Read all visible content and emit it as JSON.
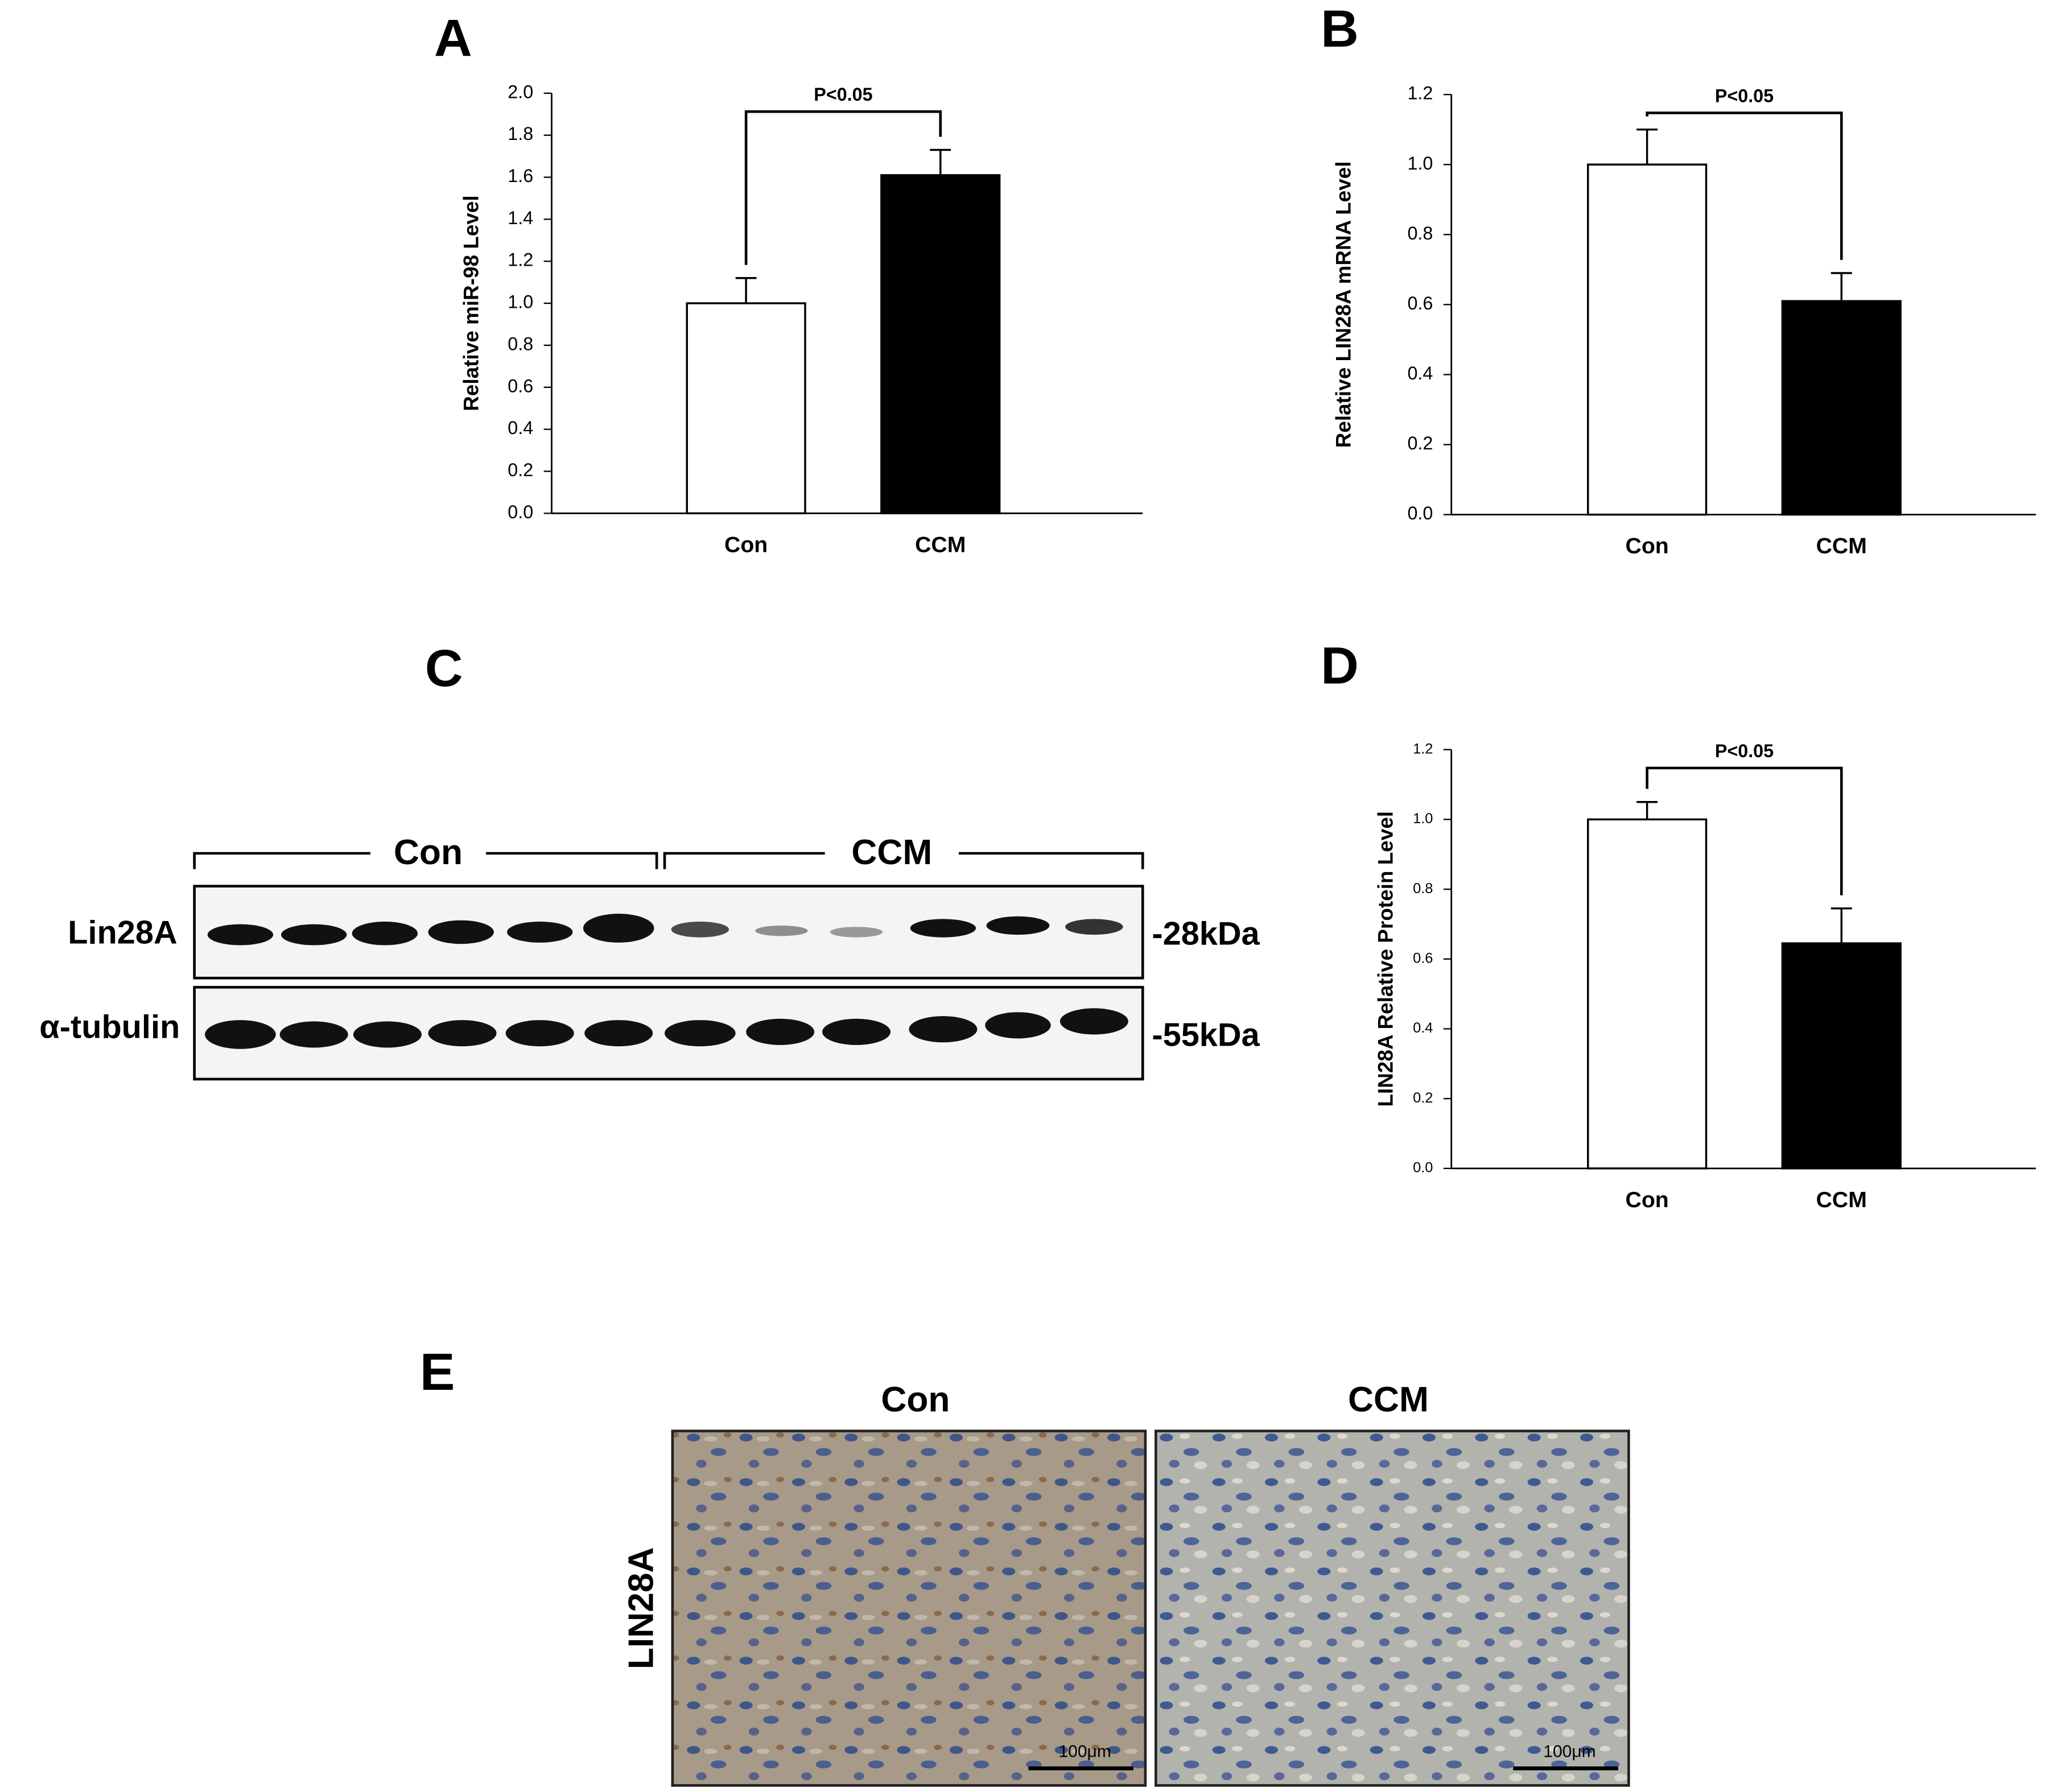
{
  "chart_data": [
    {
      "type": "bar",
      "label": "A",
      "y_label": "Relative miR-98 Level",
      "categories": [
        "Con",
        "CCM"
      ],
      "values": [
        1.0,
        1.61
      ],
      "errors": [
        0.12,
        0.12
      ],
      "colors": [
        "#ffffff",
        "#000000"
      ],
      "ylim": [
        0,
        2.0
      ],
      "yticks": [
        {
          "value": 0,
          "label": "0.0"
        },
        0.2,
        0.4,
        0.6,
        0.8,
        {
          "value": 1,
          "label": "1.0"
        },
        1.2,
        1.4,
        1.6,
        1.8,
        {
          "value": 2,
          "label": "2.0"
        }
      ],
      "annotation": "P<0.05"
    },
    {
      "type": "bar",
      "label": "B",
      "y_label": "Relative LIN28A mRNA Level",
      "categories": [
        "Con",
        "CCM"
      ],
      "values": [
        1.0,
        0.61
      ],
      "errors": [
        0.1,
        0.08
      ],
      "colors": [
        "#ffffff",
        "#000000"
      ],
      "ylim": [
        0,
        1.2
      ],
      "yticks": [
        {
          "value": 0,
          "label": "0.0"
        },
        0.2,
        0.4,
        0.6,
        0.8,
        {
          "value": 1,
          "label": "1.0"
        },
        1.2
      ],
      "annotation": "P<0.05"
    },
    {
      "type": "bar",
      "label": "D",
      "y_label": "LIN28A Relative Protein Level",
      "categories": [
        "Con",
        "CCM"
      ],
      "values": [
        1.0,
        0.645
      ],
      "errors": [
        0.05,
        0.1
      ],
      "colors": [
        "#ffffff",
        "#000000"
      ],
      "ylim": [
        0,
        1.2
      ],
      "yticks": [
        {
          "value": 0,
          "label": "0.0"
        },
        0.2,
        0.4,
        0.6,
        0.8,
        {
          "value": 1,
          "label": "1.0"
        },
        1.2
      ],
      "annotation": "P<0.05"
    }
  ],
  "panel_c": {
    "label": "C",
    "groups": [
      "Con",
      "CCM"
    ],
    "rows": [
      {
        "name": "Lin28A",
        "size": "-28kDa"
      },
      {
        "name": "α-tubulin",
        "size": "-55kDa"
      }
    ]
  },
  "panel_e": {
    "label": "E",
    "columns": [
      "Con",
      "CCM"
    ],
    "row": "LIN28A",
    "scale_bar": "100μm"
  }
}
